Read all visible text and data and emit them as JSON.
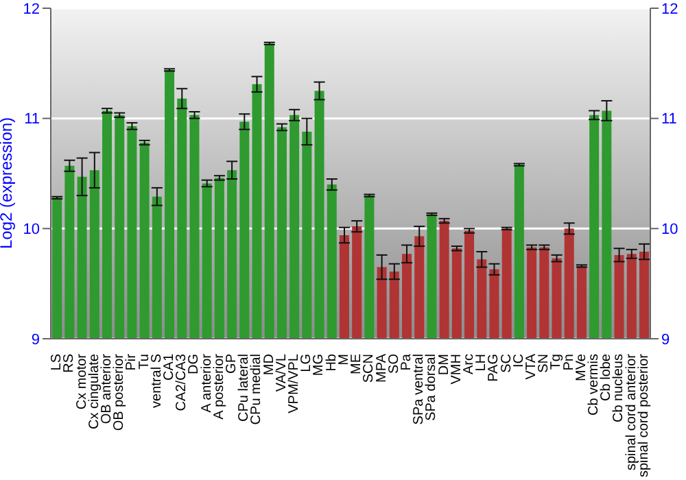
{
  "chart_data": {
    "type": "bar",
    "ylabel": "Log2 (expression)",
    "categories": [
      "LS",
      "RS",
      "Cx motor",
      "Cx cingulate",
      "OB anterior",
      "OB posterior",
      "Pir",
      "Tu",
      "ventral S",
      "CA1",
      "CA2/CA3",
      "DG",
      "A anterior",
      "A posterior",
      "GP",
      "CPu lateral",
      "CPu medial",
      "MD",
      "VA/VL",
      "VPM/VPL",
      "LG",
      "MG",
      "Hb",
      "M",
      "ME",
      "SCN",
      "MPA",
      "SO",
      "Pa",
      "SPa ventral",
      "SPa dorsal",
      "DM",
      "VMH",
      "Arc",
      "LH",
      "PAG",
      "SC",
      "IC",
      "VTA",
      "SN",
      "Tg",
      "Pn",
      "MVe",
      "Cb vermis",
      "Cb lobe",
      "Cb nucleus",
      "spinal cord anterior",
      "spinal cord posterior"
    ],
    "values": [
      10.28,
      10.57,
      10.47,
      10.53,
      11.07,
      11.03,
      10.93,
      10.78,
      10.29,
      11.44,
      11.18,
      11.03,
      10.41,
      10.46,
      10.53,
      10.97,
      11.31,
      11.68,
      10.92,
      11.03,
      10.88,
      11.25,
      10.4,
      9.94,
      10.02,
      10.3,
      9.65,
      9.61,
      9.77,
      9.93,
      10.13,
      10.07,
      9.82,
      9.98,
      9.72,
      9.63,
      10.0,
      10.58,
      9.83,
      9.83,
      9.73,
      10.0,
      9.66,
      11.03,
      11.07,
      9.76,
      9.77,
      9.79
    ],
    "errors": [
      0.01,
      0.05,
      0.17,
      0.16,
      0.02,
      0.02,
      0.03,
      0.02,
      0.08,
      0.01,
      0.09,
      0.03,
      0.03,
      0.02,
      0.08,
      0.07,
      0.07,
      0.01,
      0.03,
      0.05,
      0.12,
      0.08,
      0.05,
      0.07,
      0.05,
      0.01,
      0.11,
      0.07,
      0.08,
      0.09,
      0.01,
      0.02,
      0.02,
      0.02,
      0.07,
      0.05,
      0.01,
      0.01,
      0.02,
      0.02,
      0.03,
      0.05,
      0.01,
      0.04,
      0.09,
      0.06,
      0.04,
      0.07
    ],
    "colors": [
      "#2f9a2f",
      "#2f9a2f",
      "#2f9a2f",
      "#2f9a2f",
      "#2f9a2f",
      "#2f9a2f",
      "#2f9a2f",
      "#2f9a2f",
      "#2f9a2f",
      "#2f9a2f",
      "#2f9a2f",
      "#2f9a2f",
      "#2f9a2f",
      "#2f9a2f",
      "#2f9a2f",
      "#2f9a2f",
      "#2f9a2f",
      "#2f9a2f",
      "#2f9a2f",
      "#2f9a2f",
      "#2f9a2f",
      "#2f9a2f",
      "#2f9a2f",
      "#b03434",
      "#b03434",
      "#2f9a2f",
      "#b03434",
      "#b03434",
      "#b03434",
      "#b03434",
      "#2f9a2f",
      "#b03434",
      "#b03434",
      "#b03434",
      "#b03434",
      "#b03434",
      "#b03434",
      "#2f9a2f",
      "#b03434",
      "#b03434",
      "#b03434",
      "#b03434",
      "#b03434",
      "#2f9a2f",
      "#2f9a2f",
      "#b03434",
      "#b03434",
      "#b03434"
    ],
    "ylim": [
      9,
      12
    ],
    "yticks": [
      9,
      10,
      11,
      12
    ],
    "y2lim": [
      9,
      12
    ],
    "y2ticks": [
      9,
      10,
      11,
      12
    ],
    "grid": "y"
  }
}
